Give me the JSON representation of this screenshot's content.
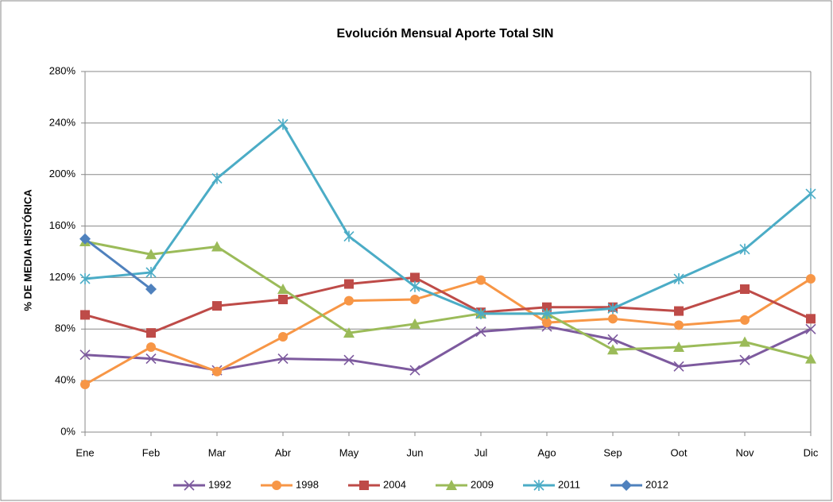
{
  "chart_data": {
    "type": "line",
    "title": "Evolución Mensual Aporte Total SIN",
    "y_label": "% DE MEDIA HISTÓRICA",
    "categories": [
      "Ene",
      "Feb",
      "Mar",
      "Abr",
      "May",
      "Jun",
      "Jul",
      "Ago",
      "Sep",
      "Oot",
      "Nov",
      "Dic"
    ],
    "ylim": [
      0,
      280
    ],
    "yticks": [
      {
        "value": 0,
        "label": "0%"
      },
      {
        "value": 40,
        "label": "40%"
      },
      {
        "value": 80,
        "label": "80%"
      },
      {
        "value": 120,
        "label": "120%"
      },
      {
        "value": 160,
        "label": "160%"
      },
      {
        "value": 200,
        "label": "200%"
      },
      {
        "value": 240,
        "label": "240%"
      },
      {
        "value": 280,
        "label": "280%"
      }
    ],
    "grid": true,
    "legend": "bottom",
    "series": [
      {
        "name": "1992",
        "color": "#7d5a9e",
        "marker": "x",
        "values": [
          60,
          57,
          48,
          57,
          56,
          48,
          78,
          82,
          72,
          51,
          56,
          80
        ]
      },
      {
        "name": "1998",
        "color": "#f79646",
        "marker": "circle",
        "values": [
          37,
          66,
          47,
          74,
          102,
          103,
          118,
          85,
          88,
          83,
          87,
          119
        ]
      },
      {
        "name": "2004",
        "color": "#be4b48",
        "marker": "square",
        "values": [
          91,
          77,
          98,
          103,
          115,
          120,
          93,
          97,
          97,
          94,
          111,
          88
        ]
      },
      {
        "name": "2009",
        "color": "#9bbb59",
        "marker": "triangle",
        "values": [
          148,
          138,
          144,
          111,
          77,
          84,
          92,
          92,
          64,
          66,
          70,
          57
        ]
      },
      {
        "name": "2011",
        "color": "#4bacc6",
        "marker": "star",
        "values": [
          119,
          124,
          197,
          239,
          152,
          113,
          92,
          92,
          96,
          119,
          142,
          185
        ]
      },
      {
        "name": "2012",
        "color": "#4f81bd",
        "marker": "diamond",
        "values": [
          150,
          111,
          null,
          null,
          null,
          null,
          null,
          null,
          null,
          null,
          null,
          null
        ]
      }
    ]
  }
}
